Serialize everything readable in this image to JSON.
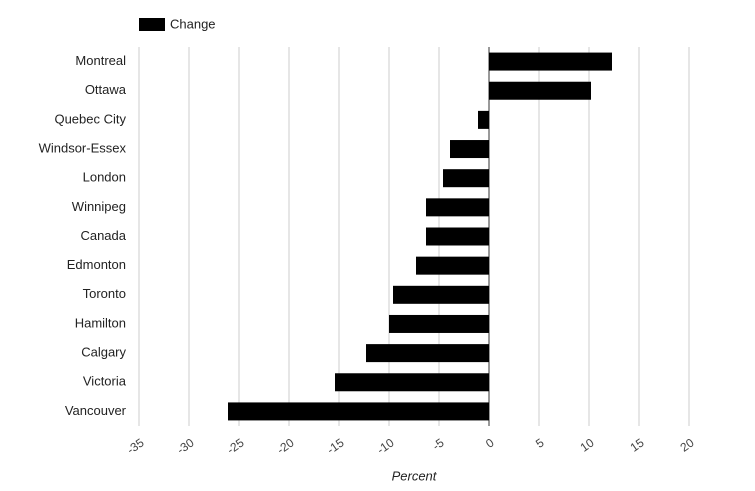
{
  "chart_data": {
    "type": "hbar",
    "categories": [
      "Montreal",
      "Ottawa",
      "Quebec City",
      "Windsor-Essex",
      "London",
      "Winnipeg",
      "Canada",
      "Edmonton",
      "Toronto",
      "Hamilton",
      "Calgary",
      "Victoria",
      "Vancouver"
    ],
    "series": [
      {
        "name": "Change",
        "color": "#000000",
        "values": [
          12.3,
          10.2,
          -1.1,
          -3.9,
          -4.6,
          -6.3,
          -6.3,
          -7.3,
          -9.6,
          -10,
          -12.3,
          -15.4,
          -26.1
        ]
      }
    ],
    "xlabel": "Percent",
    "xlim": [
      -35,
      20
    ],
    "xticks": [
      -35,
      -30,
      -25,
      -20,
      -15,
      -10,
      -5,
      0,
      5,
      10,
      15,
      20
    ],
    "grid": true,
    "legend": "top-left"
  }
}
